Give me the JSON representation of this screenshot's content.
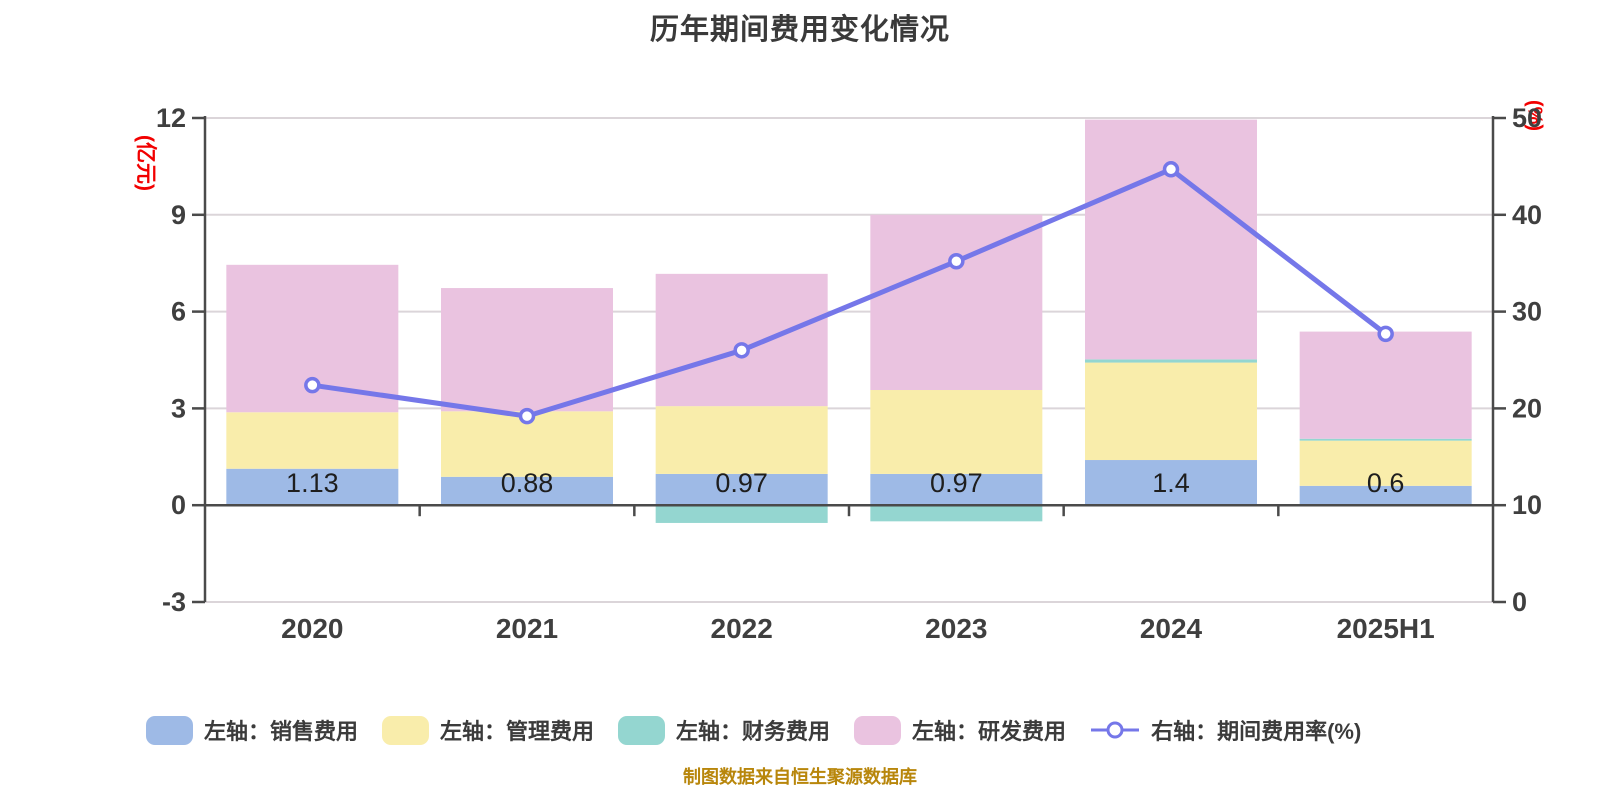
{
  "title": "历年期间费用变化情况",
  "footer": "制图数据来自恒生聚源数据库",
  "chart_data": {
    "type": "bar",
    "subtype": "stacked-bars-with-line-overlay",
    "title": "历年期间费用变化情况",
    "categories": [
      "2020",
      "2021",
      "2022",
      "2023",
      "2024",
      "2025H1"
    ],
    "left_axis": {
      "name": "(亿元)",
      "min": -3,
      "max": 12,
      "ticks": [
        12,
        9,
        6,
        3,
        0,
        -3
      ],
      "name_color": "#f20000"
    },
    "right_axis": {
      "name": "(%)",
      "min": 0,
      "max": 50,
      "ticks": [
        50,
        40,
        30,
        20,
        10,
        0
      ],
      "name_color": "#f20000"
    },
    "grid": true,
    "legend_position": "bottom",
    "series": [
      {
        "name": "左轴：销售费用",
        "type": "bar",
        "stack": true,
        "color": "#9EBAE6",
        "values": [
          1.13,
          0.88,
          0.97,
          0.97,
          1.4,
          0.6
        ]
      },
      {
        "name": "左轴：管理费用",
        "type": "bar",
        "stack": true,
        "color": "#F9EDAB",
        "values": [
          1.75,
          2.03,
          2.1,
          2.6,
          3.02,
          1.4
        ]
      },
      {
        "name": "左轴：财务费用",
        "type": "bar",
        "stack": true,
        "color": "#94D6D0",
        "values": [
          0,
          0,
          -0.55,
          -0.5,
          0.1,
          0.06
        ]
      },
      {
        "name": "左轴：研发费用",
        "type": "bar",
        "stack": true,
        "color": "#EAC3E0",
        "values": [
          4.57,
          3.82,
          4.1,
          5.43,
          7.43,
          3.32
        ]
      },
      {
        "name": "右轴：期间费用率(%)",
        "type": "line",
        "axis": "right",
        "color": "#7577E9",
        "values": [
          22.4,
          19.2,
          26.0,
          35.2,
          44.7,
          27.7
        ]
      }
    ],
    "bar_value_labels": [
      "1.13",
      "0.88",
      "0.97",
      "0.97",
      "1.4",
      "0.6"
    ],
    "style": {
      "grid_color": "#DBD5D9",
      "axis_color": "#4a4a4a",
      "tick_label_color": "#3f3f3f",
      "bar_label_color": "#1e1e1e",
      "title_color": "#3a3a3a",
      "footer_color": "#b8860b",
      "marker_fill": "#ffffff"
    }
  }
}
